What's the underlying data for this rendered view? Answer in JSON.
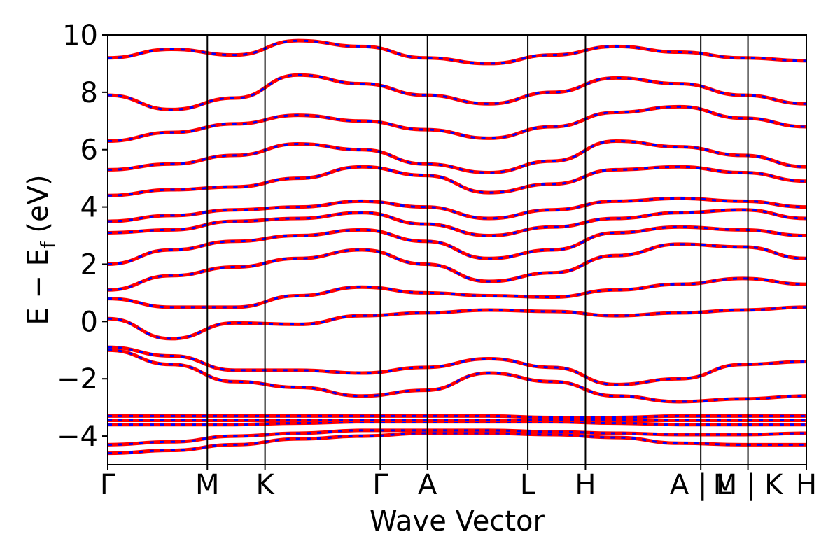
{
  "chart_data": {
    "type": "line",
    "title": "",
    "xlabel": "Wave Vector",
    "ylabel": "E − E",
    "ylabel_subscript": "f",
    "ylabel_unit": " (eV)",
    "ylim": [
      -5,
      10
    ],
    "xlim": [
      0,
      9.33
    ],
    "y_ticks": [
      10,
      8,
      6,
      4,
      2,
      0,
      -2,
      -4
    ],
    "y_tick_labels": [
      "10",
      "8",
      "6",
      "4",
      "2",
      "0",
      "−2",
      "−4"
    ],
    "k_points": [
      {
        "label": "Γ",
        "x": 0.0
      },
      {
        "label": "M",
        "x": 1.33
      },
      {
        "label": "K",
        "x": 2.1
      },
      {
        "label": "Γ",
        "x": 3.64
      },
      {
        "label": "A",
        "x": 4.27
      },
      {
        "label": "L",
        "x": 5.61
      },
      {
        "label": "H",
        "x": 6.38
      },
      {
        "label": "A | L",
        "x": 7.92
      },
      {
        "label": "M | K",
        "x": 8.55
      },
      {
        "label": "H",
        "x": 9.33
      }
    ],
    "segment_breaks": [
      7.92,
      8.55
    ],
    "series": [
      {
        "color": "#ff0000",
        "style": "solid"
      },
      {
        "color": "#0000ff",
        "style": "dashed"
      }
    ],
    "bands": [
      [
        -4.6,
        -4.5,
        -4.3,
        -4.1,
        -4.0,
        -3.9,
        -3.9,
        -3.95,
        -4.05,
        -4.25,
        -4.3,
        -4.3
      ],
      [
        -4.3,
        -4.2,
        -4.0,
        -3.9,
        -3.8,
        -3.8,
        -3.8,
        -3.85,
        -3.9,
        -3.95,
        -3.95,
        -3.9
      ],
      [
        -3.6,
        -3.6,
        -3.6,
        -3.55,
        -3.5,
        -3.5,
        -3.5,
        -3.5,
        -3.55,
        -3.6,
        -3.6,
        -3.6
      ],
      [
        -3.45,
        -3.45,
        -3.45,
        -3.45,
        -3.45,
        -3.45,
        -3.45,
        -3.45,
        -3.45,
        -3.45,
        -3.45,
        -3.45
      ],
      [
        -3.3,
        -3.3,
        -3.3,
        -3.3,
        -3.3,
        -3.3,
        -3.3,
        -3.35,
        -3.35,
        -3.3,
        -3.3,
        -3.3
      ],
      [
        -1.0,
        -1.5,
        -2.1,
        -2.3,
        -2.6,
        -2.4,
        -1.8,
        -2.1,
        -2.6,
        -2.8,
        -2.7,
        -2.6
      ],
      [
        -0.9,
        -1.2,
        -1.7,
        -1.7,
        -1.8,
        -1.6,
        -1.3,
        -1.6,
        -2.2,
        -2.0,
        -1.5,
        -1.4
      ],
      [
        0.1,
        -0.6,
        -0.05,
        -0.1,
        0.2,
        0.3,
        0.4,
        0.35,
        0.2,
        0.3,
        0.4,
        0.5
      ],
      [
        0.8,
        0.5,
        0.5,
        0.9,
        1.2,
        1.0,
        0.9,
        0.85,
        1.1,
        1.3,
        1.5,
        1.3
      ],
      [
        1.1,
        1.6,
        1.9,
        2.2,
        2.5,
        2.0,
        1.4,
        1.7,
        2.3,
        2.7,
        2.6,
        2.2
      ],
      [
        2.0,
        2.5,
        2.8,
        3.0,
        3.2,
        2.8,
        2.2,
        2.5,
        3.1,
        3.3,
        3.2,
        3.0
      ],
      [
        3.1,
        3.2,
        3.5,
        3.6,
        3.8,
        3.4,
        3.0,
        3.3,
        3.6,
        3.8,
        3.9,
        3.6
      ],
      [
        3.5,
        3.7,
        3.9,
        4.0,
        4.2,
        4.0,
        3.6,
        3.9,
        4.2,
        4.3,
        4.2,
        4.0
      ],
      [
        4.4,
        4.6,
        4.7,
        5.0,
        5.4,
        5.1,
        4.5,
        4.8,
        5.3,
        5.4,
        5.2,
        4.9
      ],
      [
        5.3,
        5.5,
        5.8,
        6.2,
        6.0,
        5.5,
        5.2,
        5.6,
        6.3,
        6.1,
        5.8,
        5.4
      ],
      [
        6.3,
        6.6,
        6.9,
        7.2,
        7.0,
        6.7,
        6.4,
        6.8,
        7.3,
        7.5,
        7.1,
        6.8
      ],
      [
        7.9,
        7.4,
        7.8,
        8.6,
        8.3,
        7.9,
        7.6,
        8.0,
        8.5,
        8.3,
        7.9,
        7.6
      ],
      [
        9.2,
        9.5,
        9.3,
        9.8,
        9.6,
        9.2,
        9.0,
        9.3,
        9.6,
        9.4,
        9.2,
        9.1
      ]
    ]
  }
}
